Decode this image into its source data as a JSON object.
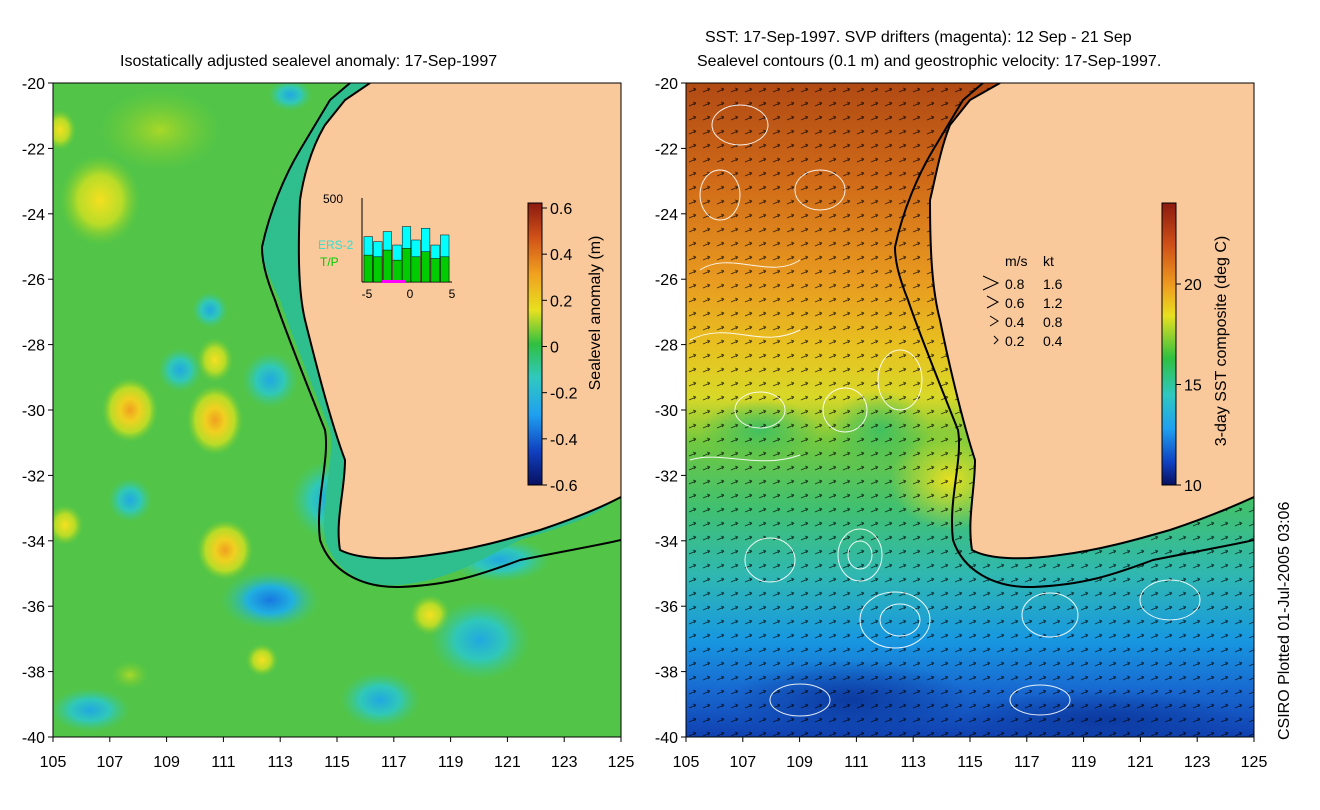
{
  "left_panel": {
    "title": "Isostatically adjusted sealevel anomaly: 17-Sep-1997",
    "colorbar": {
      "label": "Sealevel anomaly (m)",
      "ticks": [
        "0.6",
        "0.4",
        "0.2",
        "0",
        "-0.2",
        "-0.4",
        "-0.6"
      ],
      "range": [
        -0.6,
        0.6
      ]
    },
    "inset": {
      "ymax_label": "500",
      "legend": [
        "ERS-2",
        "T/P"
      ],
      "x_ticks": [
        "-5",
        "0",
        "5"
      ],
      "ers2_values": [
        270,
        240,
        300,
        220,
        330,
        250,
        320,
        220,
        280
      ],
      "tp_values": [
        160,
        150,
        190,
        130,
        200,
        150,
        180,
        140,
        150
      ],
      "ymax": 500
    },
    "colors": {
      "ers2": "#00ffff",
      "tp": "#00cc00",
      "inset_window": "#ff00ff"
    }
  },
  "right_panel": {
    "title_line1": "SST: 17-Sep-1997. SVP drifters (magenta): 12 Sep - 21 Sep",
    "title_line2": "Sealevel contours (0.1 m) and geostrophic velocity: 17-Sep-1997.",
    "colorbar": {
      "label": "3-day SST composite (deg C)",
      "ticks": [
        "20",
        "15",
        "10"
      ],
      "range": [
        10,
        23.5
      ]
    },
    "velocity_legend": {
      "header_ms": "m/s",
      "header_kt": "kt",
      "rows": [
        {
          "ms": "0.8",
          "kt": "1.6"
        },
        {
          "ms": "0.6",
          "kt": "1.2"
        },
        {
          "ms": "0.4",
          "kt": "0.8"
        },
        {
          "ms": "0.2",
          "kt": "0.4"
        }
      ]
    }
  },
  "axes": {
    "y_ticks": [
      "-20",
      "-22",
      "-24",
      "-26",
      "-28",
      "-30",
      "-32",
      "-34",
      "-36",
      "-38",
      "-40"
    ],
    "x_ticks": [
      "105",
      "107",
      "109",
      "111",
      "113",
      "115",
      "117",
      "119",
      "121",
      "123",
      "125"
    ],
    "lon_range": [
      105,
      125
    ],
    "lat_range": [
      -40,
      -20
    ]
  },
  "credit": "CSIRO Plotted 01-Jul-2005 03:06",
  "colors": {
    "land": "#f9c89b",
    "shelf": "#2fbf8f",
    "coast": "#000000"
  }
}
